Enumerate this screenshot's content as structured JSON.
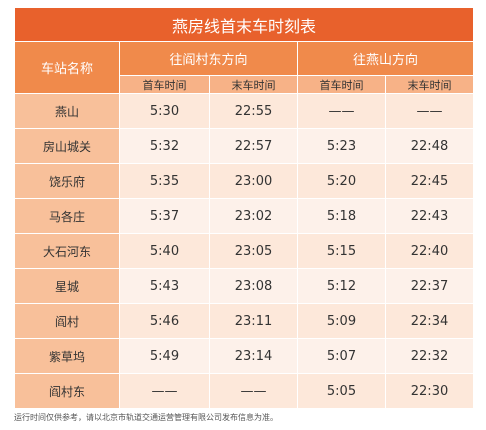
{
  "table": {
    "title": "燕房线首末车时刻表",
    "col_station": "车站名称",
    "dir1": "往阎村东方向",
    "dir2": "往燕山方向",
    "first": "首车时间",
    "last": "末车时间",
    "rows": [
      {
        "station": "燕山",
        "d1_first": "5:30",
        "d1_last": "22:55",
        "d2_first": "——",
        "d2_last": "——"
      },
      {
        "station": "房山城关",
        "d1_first": "5:32",
        "d1_last": "22:57",
        "d2_first": "5:23",
        "d2_last": "22:48"
      },
      {
        "station": "饶乐府",
        "d1_first": "5:35",
        "d1_last": "23:00",
        "d2_first": "5:20",
        "d2_last": "22:45"
      },
      {
        "station": "马各庄",
        "d1_first": "5:37",
        "d1_last": "23:02",
        "d2_first": "5:18",
        "d2_last": "22:43"
      },
      {
        "station": "大石河东",
        "d1_first": "5:40",
        "d1_last": "23:05",
        "d2_first": "5:15",
        "d2_last": "22:40"
      },
      {
        "station": "星城",
        "d1_first": "5:43",
        "d1_last": "23:08",
        "d2_first": "5:12",
        "d2_last": "22:37"
      },
      {
        "station": "阎村",
        "d1_first": "5:46",
        "d1_last": "23:11",
        "d2_first": "5:09",
        "d2_last": "22:34"
      },
      {
        "station": "紫草坞",
        "d1_first": "5:49",
        "d1_last": "23:14",
        "d2_first": "5:07",
        "d2_last": "22:32"
      },
      {
        "station": "阎村东",
        "d1_first": "——",
        "d1_last": "——",
        "d2_first": "5:05",
        "d2_last": "22:30"
      }
    ]
  },
  "footnote": "运行时间仅供参考，请以北京市轨道交通运营管理有限公司发布信息为准。",
  "colors": {
    "title_bg": "#e8612c",
    "header_bg": "#f08a4b",
    "subheader_bg": "#f7b287",
    "station_bg": "#f8c09a",
    "row_odd_bg": "#fde8da",
    "row_even_bg": "#fdf1ea"
  }
}
